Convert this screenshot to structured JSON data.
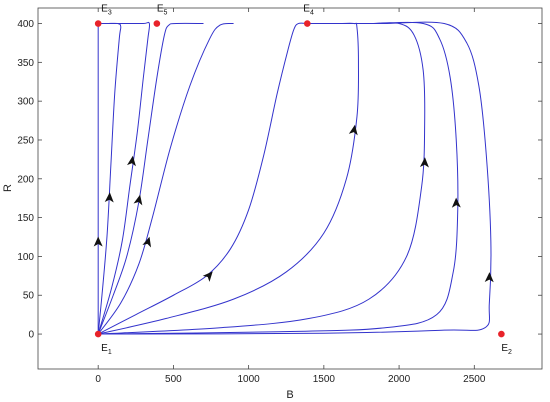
{
  "chart_data": {
    "type": "line",
    "title": "",
    "xlabel": "B",
    "ylabel": "R",
    "xlim": [
      -400,
      2950
    ],
    "ylim": [
      -45,
      420
    ],
    "xticks": [
      0,
      500,
      1000,
      1500,
      2000,
      2500
    ],
    "yticks": [
      0,
      50,
      100,
      150,
      200,
      250,
      300,
      350,
      400
    ],
    "grid": false,
    "legend": "none",
    "colors": {
      "trajectory": "#3333cc",
      "equilibrium": "#e8232a",
      "axes": "#444444"
    },
    "equilibria": [
      {
        "label": "E",
        "sub": "1",
        "x": 0,
        "y": 0
      },
      {
        "label": "E",
        "sub": "2",
        "x": 2680,
        "y": 0
      },
      {
        "label": "E",
        "sub": "3",
        "x": 0,
        "y": 400
      },
      {
        "label": "E",
        "sub": "4",
        "x": 1390,
        "y": 400
      },
      {
        "label": "E",
        "sub": "5",
        "x": 390,
        "y": 400
      }
    ],
    "series": [
      {
        "points": [
          [
            0,
            0
          ],
          [
            0,
            100
          ],
          [
            0,
            200
          ],
          [
            0,
            300
          ],
          [
            0,
            400
          ]
        ],
        "arrow": [
          0,
          118
        ]
      },
      {
        "points": [
          [
            0,
            0
          ],
          [
            30,
            60
          ],
          [
            60,
            130
          ],
          [
            85,
            220
          ],
          [
            110,
            310
          ],
          [
            140,
            380
          ],
          [
            150,
            396
          ],
          [
            130,
            400
          ],
          [
            60,
            400
          ],
          [
            0,
            400
          ]
        ],
        "arrow": [
          75,
          175
        ]
      },
      {
        "points": [
          [
            0,
            0
          ],
          [
            90,
            60
          ],
          [
            160,
            120
          ],
          [
            210,
            190
          ],
          [
            260,
            260
          ],
          [
            300,
            330
          ],
          [
            330,
            380
          ],
          [
            340,
            400
          ],
          [
            300,
            400
          ],
          [
            150,
            400
          ],
          [
            0,
            400
          ]
        ],
        "arrow": [
          225,
          222
        ]
      },
      {
        "points": [
          [
            0,
            0
          ],
          [
            100,
            50
          ],
          [
            190,
            100
          ],
          [
            270,
            170
          ],
          [
            330,
            250
          ],
          [
            390,
            330
          ],
          [
            440,
            385
          ],
          [
            470,
            398
          ],
          [
            520,
            400
          ],
          [
            700,
            400
          ]
        ],
        "arrow": [
          270,
          172
        ]
      },
      {
        "points": [
          [
            0,
            0
          ],
          [
            150,
            40
          ],
          [
            270,
            90
          ],
          [
            360,
            150
          ],
          [
            480,
            240
          ],
          [
            610,
            320
          ],
          [
            740,
            380
          ],
          [
            810,
            398
          ],
          [
            900,
            400
          ]
        ],
        "arrow": [
          330,
          118
        ]
      },
      {
        "points": [
          [
            0,
            0
          ],
          [
            250,
            25
          ],
          [
            500,
            50
          ],
          [
            720,
            75
          ],
          [
            880,
            110
          ],
          [
            1000,
            160
          ],
          [
            1100,
            230
          ],
          [
            1190,
            310
          ],
          [
            1260,
            365
          ],
          [
            1300,
            392
          ],
          [
            1330,
            400
          ],
          [
            1390,
            400
          ]
        ],
        "arrow": [
          735,
          75
        ]
      },
      {
        "points": [
          [
            0,
            0
          ],
          [
            450,
            20
          ],
          [
            900,
            45
          ],
          [
            1250,
            80
          ],
          [
            1500,
            130
          ],
          [
            1650,
            200
          ],
          [
            1720,
            280
          ],
          [
            1730,
            350
          ],
          [
            1720,
            395
          ],
          [
            1700,
            400
          ],
          [
            1600,
            400
          ],
          [
            1390,
            400
          ]
        ],
        "arrow": [
          1700,
          262
        ]
      },
      {
        "points": [
          [
            0,
            0
          ],
          [
            800,
            8
          ],
          [
            1400,
            20
          ],
          [
            1800,
            45
          ],
          [
            2050,
            100
          ],
          [
            2150,
            190
          ],
          [
            2170,
            270
          ],
          [
            2160,
            340
          ],
          [
            2100,
            385
          ],
          [
            2000,
            400
          ],
          [
            1800,
            400
          ],
          [
            1600,
            400
          ]
        ],
        "arrow": [
          2170,
          220
        ]
      },
      {
        "points": [
          [
            0,
            0
          ],
          [
            1200,
            3
          ],
          [
            1900,
            8
          ],
          [
            2250,
            25
          ],
          [
            2360,
            80
          ],
          [
            2390,
            160
          ],
          [
            2380,
            250
          ],
          [
            2340,
            330
          ],
          [
            2270,
            380
          ],
          [
            2160,
            400
          ],
          [
            1800,
            400
          ],
          [
            1500,
            400
          ]
        ],
        "arrow": [
          2380,
          168
        ]
      },
      {
        "points": [
          [
            0,
            0
          ],
          [
            1500,
            1
          ],
          [
            2300,
            5
          ],
          [
            2570,
            8
          ],
          [
            2600,
            40
          ],
          [
            2610,
            120
          ],
          [
            2580,
            230
          ],
          [
            2530,
            320
          ],
          [
            2450,
            375
          ],
          [
            2300,
            400
          ],
          [
            1900,
            400
          ],
          [
            1700,
            400
          ]
        ],
        "arrow": [
          2600,
          72
        ]
      }
    ]
  }
}
